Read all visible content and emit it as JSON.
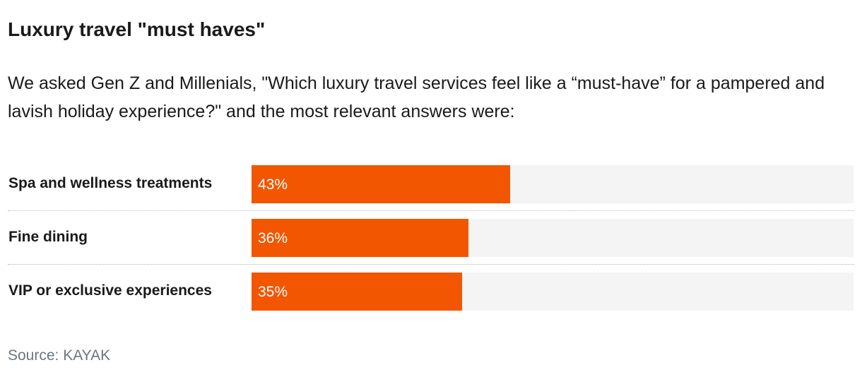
{
  "title": "Luxury travel \"must haves\"",
  "subtitle": "We asked Gen Z and Millenials, \"Which luxury travel services feel like a “must-have” for a pampered and lavish holiday experience?\" and the most relevant answers were:",
  "source": "Source: KAYAK",
  "colors": {
    "bar": "#f25600",
    "track": "#f4f4f4",
    "text": "#1a1a1a",
    "source": "#6b7580"
  },
  "chart_data": {
    "type": "bar",
    "orientation": "horizontal",
    "title": "Luxury travel \"must haves\"",
    "categories": [
      "Spa and wellness treatments",
      "Fine dining",
      "VIP or exclusive experiences"
    ],
    "values": [
      43,
      36,
      35
    ],
    "value_labels": [
      "43%",
      "36%",
      "35%"
    ],
    "unit": "%",
    "xlim": [
      0,
      100
    ],
    "grid": false
  }
}
